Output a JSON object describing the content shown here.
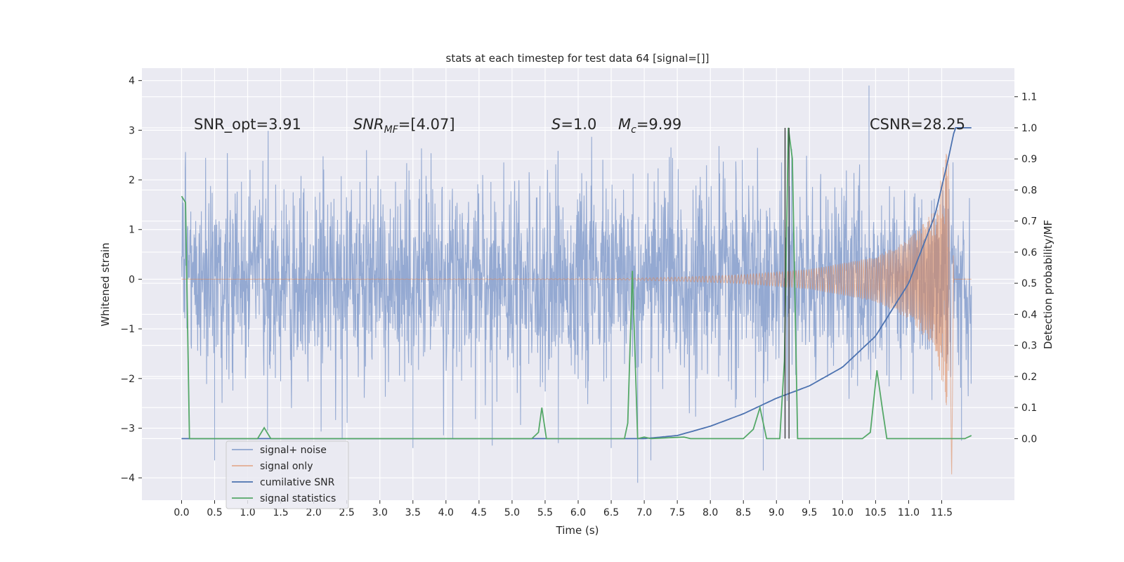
{
  "chart_data": {
    "type": "line",
    "title": "stats at each timestep for test data 64 [signal=[]]",
    "xlabel": "Time (s)",
    "ylabel_left": "Whitened strain",
    "ylabel_right": "Detection probability/MF",
    "xlim": [
      -0.6,
      12.6
    ],
    "ylim_left": [
      -4.45,
      4.25
    ],
    "ylim_right": [
      -0.198,
      1.192
    ],
    "x_ticks": [
      "0.0",
      "0.5",
      "1.0",
      "1.5",
      "2.0",
      "2.5",
      "3.0",
      "3.5",
      "4.0",
      "4.5",
      "5.0",
      "5.5",
      "6.0",
      "6.5",
      "7.0",
      "7.5",
      "8.0",
      "8.5",
      "9.0",
      "9.5",
      "10.0",
      "10.5",
      "11.0",
      "11.5"
    ],
    "y_ticks_left": [
      "−4",
      "−3",
      "−2",
      "−1",
      "0",
      "1",
      "2",
      "3",
      "4"
    ],
    "y_ticks_right": [
      "0.0",
      "0.1",
      "0.2",
      "0.3",
      "0.4",
      "0.5",
      "0.6",
      "0.7",
      "0.8",
      "0.9",
      "1.0",
      "1.1"
    ],
    "grid": true,
    "legend_placement": "lower-left",
    "colors": {
      "background": "#eaeaf2",
      "grid": "#ffffff",
      "signal_noise": "#8fa5d0",
      "signal_only": "#dd8452",
      "cumulative_snr": "#4c72b0",
      "signal_statistics": "#55a868",
      "marker_lines": "#333333"
    },
    "annotations": [
      {
        "text": "SNR_opt=3.91"
      },
      {
        "text": "SNR_MF=[4.07]",
        "main": "SNR",
        "sub": "MF",
        "rest": "=[4.07]"
      },
      {
        "text": "S=1.0",
        "main": "S",
        "rest": "=1.0"
      },
      {
        "text": "M_c=9.99",
        "main": "M",
        "sub": "c",
        "rest": "=9.99"
      },
      {
        "text": "CSNR=28.25"
      }
    ],
    "vertical_markers": [
      9.13,
      9.19
    ],
    "series": [
      {
        "name": "signal+ noise",
        "axis": "left",
        "description": "whitened noisy strain, amplitude ~±2.5 with spikes to ~±4",
        "x_range": [
          0.0,
          11.95
        ],
        "spike_points": [
          [
            0.5,
            -3.65
          ],
          [
            1.3,
            -3.05
          ],
          [
            3.5,
            -3.4
          ],
          [
            4.7,
            -3.35
          ],
          [
            5.7,
            -3.3
          ],
          [
            6.5,
            -3.4
          ],
          [
            6.9,
            -4.1
          ],
          [
            7.1,
            -3.65
          ],
          [
            8.8,
            -3.85
          ],
          [
            10.4,
            3.9
          ],
          [
            11.8,
            -3.25
          ]
        ]
      },
      {
        "name": "signal only",
        "axis": "left",
        "description": "chirp waveform growing toward merger at t≈11.65",
        "envelope_points": [
          [
            0,
            0.0
          ],
          [
            6.5,
            0.01
          ],
          [
            7.5,
            0.04
          ],
          [
            8.5,
            0.09
          ],
          [
            9.5,
            0.2
          ],
          [
            10.5,
            0.45
          ],
          [
            11.0,
            0.8
          ],
          [
            11.4,
            1.4
          ],
          [
            11.6,
            2.8
          ],
          [
            11.65,
            -4.1
          ],
          [
            11.68,
            0.0
          ],
          [
            11.95,
            0.0
          ]
        ]
      },
      {
        "name": "cumilative SNR",
        "axis": "right",
        "points": [
          [
            0.0,
            0.0
          ],
          [
            7.0,
            0.0
          ],
          [
            7.5,
            0.01
          ],
          [
            8.0,
            0.04
          ],
          [
            8.5,
            0.08
          ],
          [
            9.0,
            0.13
          ],
          [
            9.5,
            0.17
          ],
          [
            10.0,
            0.23
          ],
          [
            10.5,
            0.33
          ],
          [
            11.0,
            0.5
          ],
          [
            11.4,
            0.72
          ],
          [
            11.6,
            0.9
          ],
          [
            11.7,
            1.0
          ],
          [
            11.95,
            1.0
          ]
        ]
      },
      {
        "name": "signal statistics",
        "axis": "right",
        "points": [
          [
            0.0,
            0.78
          ],
          [
            0.06,
            0.76
          ],
          [
            0.12,
            0.0
          ],
          [
            1.15,
            0.0
          ],
          [
            1.25,
            0.035
          ],
          [
            1.35,
            0.0
          ],
          [
            5.3,
            0.0
          ],
          [
            5.4,
            0.02
          ],
          [
            5.45,
            0.1
          ],
          [
            5.52,
            0.0
          ],
          [
            6.7,
            0.0
          ],
          [
            6.75,
            0.05
          ],
          [
            6.82,
            0.54
          ],
          [
            6.9,
            0.0
          ],
          [
            7.0,
            0.005
          ],
          [
            7.1,
            0.0
          ],
          [
            7.6,
            0.005
          ],
          [
            7.7,
            0.0
          ],
          [
            8.5,
            0.0
          ],
          [
            8.65,
            0.03
          ],
          [
            8.75,
            0.1
          ],
          [
            8.85,
            0.0
          ],
          [
            9.05,
            0.0
          ],
          [
            9.12,
            0.25
          ],
          [
            9.18,
            1.0
          ],
          [
            9.24,
            0.9
          ],
          [
            9.32,
            0.0
          ],
          [
            10.3,
            0.0
          ],
          [
            10.42,
            0.02
          ],
          [
            10.52,
            0.22
          ],
          [
            10.6,
            0.1
          ],
          [
            10.67,
            0.0
          ],
          [
            11.85,
            0.0
          ],
          [
            11.95,
            0.01
          ]
        ]
      }
    ]
  }
}
